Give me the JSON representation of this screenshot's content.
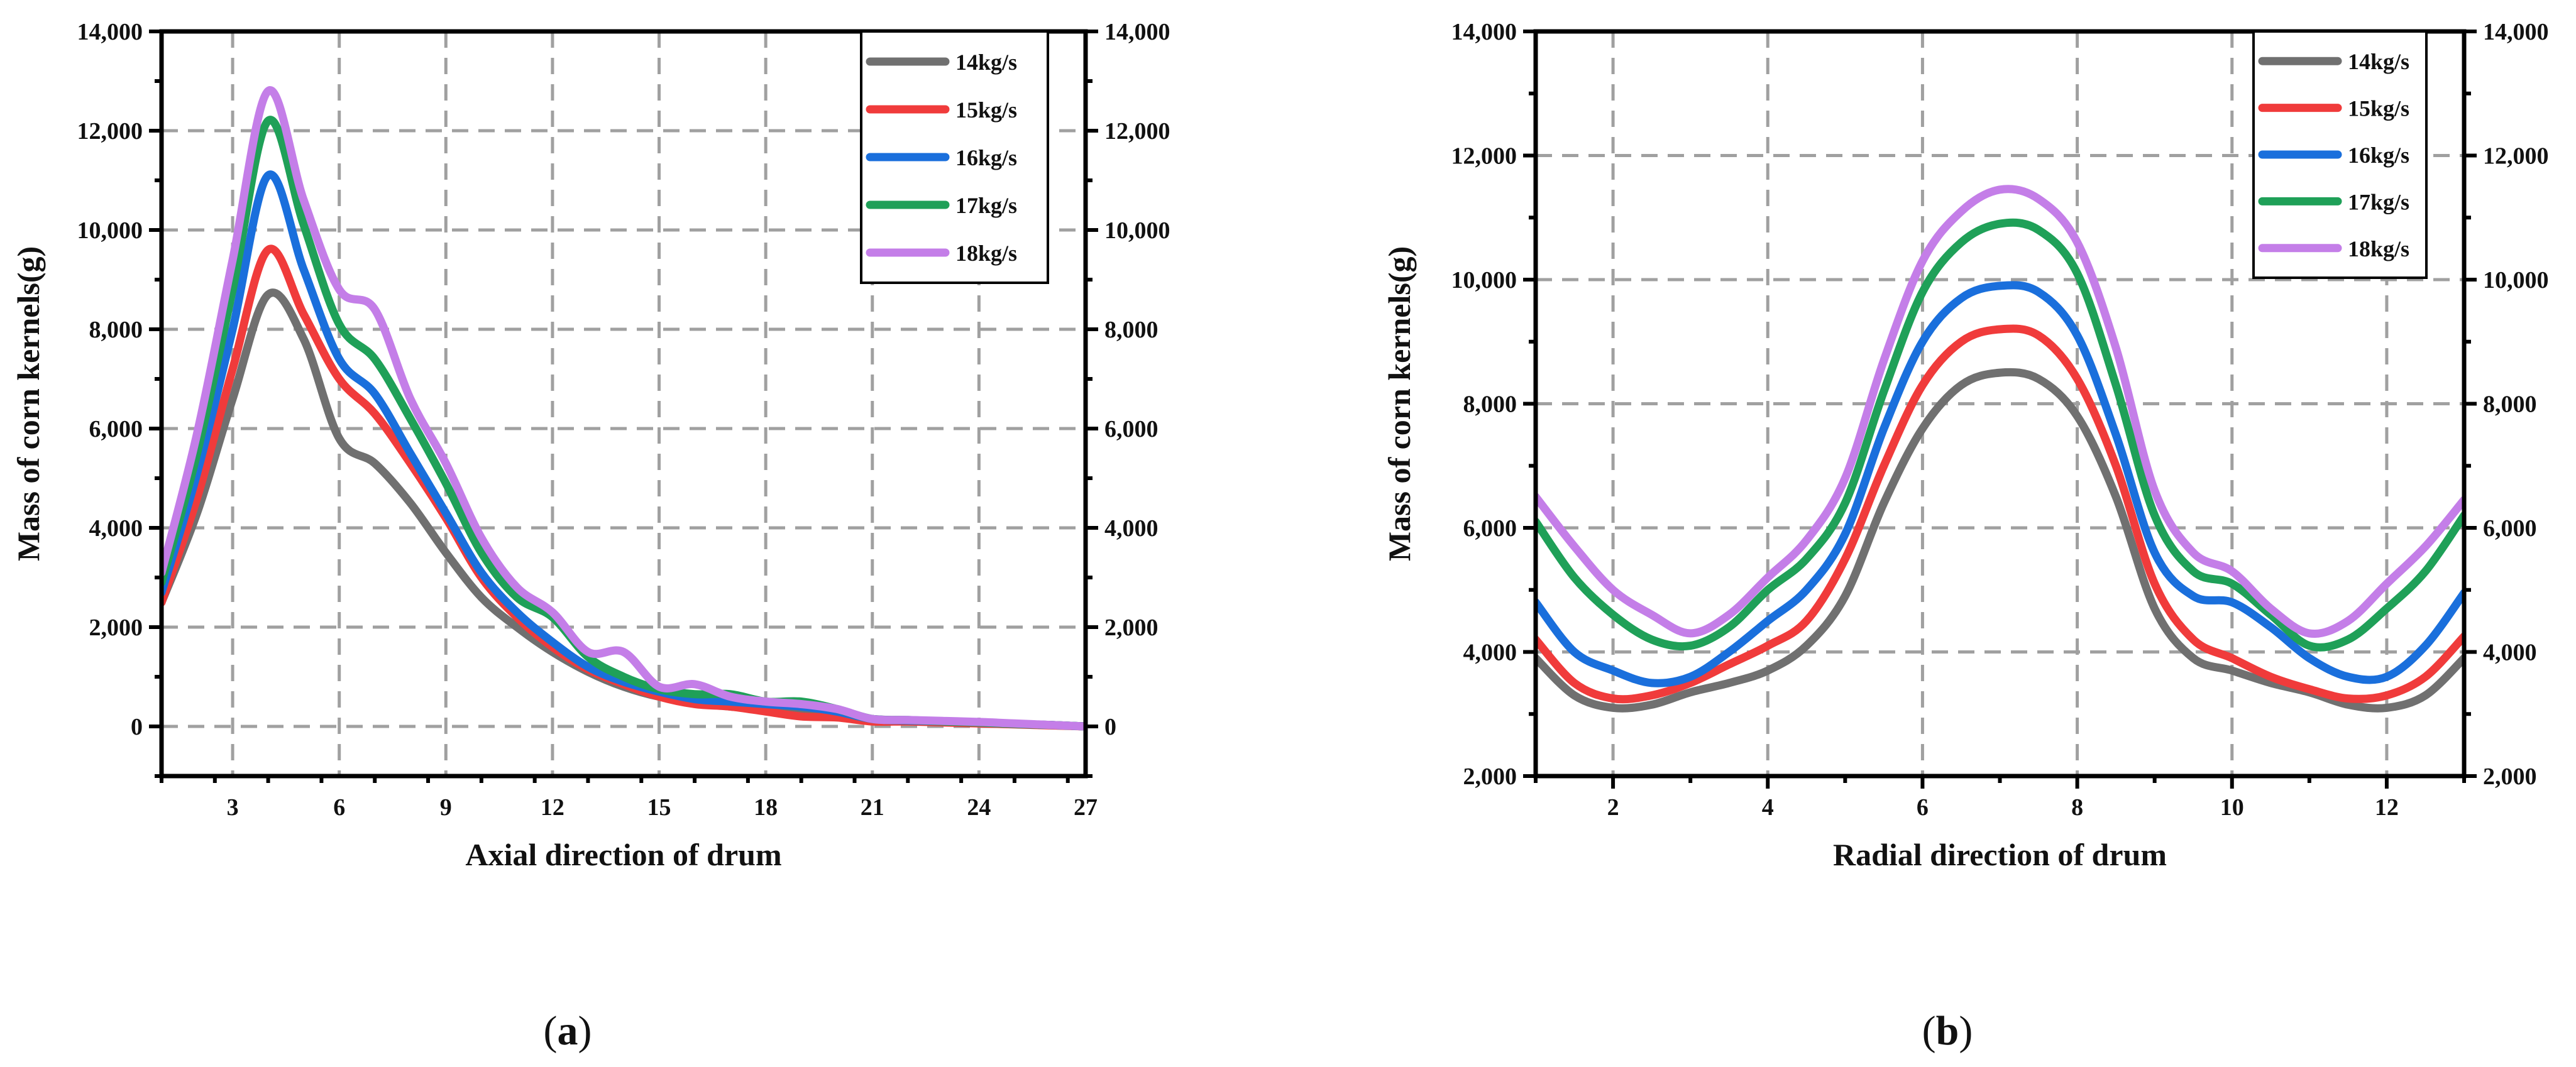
{
  "chart_data": [
    {
      "type": "line",
      "panel_label": "a",
      "xlabel": "Axial direction of drum",
      "ylabel": "Mass of corn kernels(g)",
      "xlim": [
        1,
        27
      ],
      "ylim": [
        -1000,
        14000
      ],
      "x_ticks": [
        3,
        6,
        9,
        12,
        15,
        18,
        21,
        24,
        27
      ],
      "x_tick_labels": [
        "3",
        "6",
        "9",
        "12",
        "15",
        "18",
        "21",
        "24",
        "27"
      ],
      "y_ticks": [
        0,
        2000,
        4000,
        6000,
        8000,
        10000,
        12000,
        14000
      ],
      "y_tick_labels": [
        "0",
        "2,000",
        "4,000",
        "6,000",
        "8,000",
        "10,000",
        "12,000",
        "14,000"
      ],
      "right_axis_tick_labels": [
        "0",
        "2,000",
        "4,000",
        "6,000",
        "8,000",
        "10,000",
        "12,000",
        "14,000"
      ],
      "grid": true,
      "legend_position": "top-right",
      "x": [
        1,
        2,
        3,
        4,
        5,
        6,
        7,
        8,
        9,
        10,
        11,
        12,
        13,
        14,
        15,
        16,
        17,
        18,
        19,
        20,
        21,
        22,
        23,
        24,
        25,
        26,
        27
      ],
      "series": [
        {
          "name": "14kg/s",
          "color": "#707070",
          "values": [
            2500,
            4300,
            6600,
            8700,
            7800,
            5800,
            5300,
            4500,
            3500,
            2600,
            2000,
            1500,
            1100,
            800,
            600,
            500,
            400,
            350,
            300,
            250,
            150,
            120,
            100,
            80,
            50,
            30,
            0
          ]
        },
        {
          "name": "15kg/s",
          "color": "#f03b3b",
          "values": [
            2500,
            4600,
            7200,
            9600,
            8300,
            7000,
            6300,
            5300,
            4200,
            3000,
            2200,
            1600,
            1150,
            850,
            600,
            450,
            400,
            300,
            200,
            180,
            100,
            100,
            80,
            60,
            40,
            20,
            0
          ]
        },
        {
          "name": "16kg/s",
          "color": "#1a6fdc",
          "values": [
            2700,
            5100,
            8000,
            11100,
            9200,
            7400,
            6700,
            5500,
            4300,
            3100,
            2300,
            1700,
            1200,
            900,
            700,
            550,
            500,
            450,
            400,
            300,
            150,
            120,
            100,
            80,
            50,
            30,
            0
          ]
        },
        {
          "name": "17kg/s",
          "color": "#1fa058",
          "values": [
            2900,
            5500,
            8800,
            12200,
            10100,
            8100,
            7400,
            6200,
            4900,
            3500,
            2600,
            2200,
            1400,
            1000,
            750,
            650,
            650,
            500,
            500,
            350,
            150,
            130,
            100,
            80,
            50,
            30,
            0
          ]
        },
        {
          "name": "18kg/s",
          "color": "#c47ee8",
          "values": [
            3100,
            5900,
            9400,
            12800,
            10600,
            8800,
            8400,
            6600,
            5300,
            3800,
            2800,
            2300,
            1500,
            1500,
            800,
            850,
            600,
            500,
            450,
            350,
            150,
            130,
            110,
            90,
            60,
            30,
            0
          ]
        }
      ]
    },
    {
      "type": "line",
      "panel_label": "b",
      "xlabel": "Radial direction of drum",
      "ylabel": "Mass of corn kernels(g)",
      "xlim": [
        1,
        13
      ],
      "ylim": [
        2000,
        14000
      ],
      "x_ticks": [
        2,
        4,
        6,
        8,
        10,
        12
      ],
      "x_tick_labels": [
        "2",
        "4",
        "6",
        "8",
        "10",
        "12"
      ],
      "y_ticks": [
        2000,
        4000,
        6000,
        8000,
        10000,
        12000,
        14000
      ],
      "y_tick_labels": [
        "2,000",
        "4,000",
        "6,000",
        "8,000",
        "10,000",
        "12,000",
        "14,000"
      ],
      "right_axis_tick_labels": [
        "2,000",
        "4,000",
        "6,000",
        "8,000",
        "10,000",
        "12,000",
        "14,000"
      ],
      "grid": true,
      "legend_position": "top-right",
      "x": [
        1,
        1.5,
        2,
        2.5,
        3,
        3.5,
        4,
        4.5,
        5,
        5.5,
        6,
        6.5,
        7,
        7.5,
        8,
        8.5,
        9,
        9.5,
        10,
        10.5,
        11,
        11.5,
        12,
        12.5,
        13
      ],
      "series": [
        {
          "name": "14kg/s",
          "color": "#707070",
          "values": [
            3900,
            3300,
            3100,
            3150,
            3350,
            3500,
            3700,
            4100,
            4900,
            6400,
            7600,
            8300,
            8500,
            8400,
            7800,
            6500,
            4700,
            3900,
            3700,
            3500,
            3350,
            3150,
            3100,
            3300,
            3900
          ]
        },
        {
          "name": "15kg/s",
          "color": "#f03b3b",
          "values": [
            4200,
            3500,
            3250,
            3300,
            3500,
            3800,
            4100,
            4500,
            5500,
            7000,
            8300,
            9000,
            9200,
            9100,
            8400,
            7000,
            5100,
            4200,
            3900,
            3600,
            3400,
            3250,
            3300,
            3600,
            4250
          ]
        },
        {
          "name": "16kg/s",
          "color": "#1a6fdc",
          "values": [
            4800,
            4000,
            3700,
            3500,
            3600,
            4000,
            4500,
            5000,
            5900,
            7600,
            9000,
            9700,
            9900,
            9800,
            9100,
            7500,
            5600,
            4900,
            4800,
            4400,
            3900,
            3600,
            3600,
            4100,
            4950
          ]
        },
        {
          "name": "17kg/s",
          "color": "#1fa058",
          "values": [
            6100,
            5200,
            4600,
            4200,
            4100,
            4400,
            5000,
            5500,
            6400,
            8200,
            9800,
            10600,
            10900,
            10800,
            10100,
            8300,
            6200,
            5300,
            5100,
            4600,
            4100,
            4200,
            4700,
            5300,
            6200
          ]
        },
        {
          "name": "18kg/s",
          "color": "#c47ee8",
          "values": [
            6500,
            5700,
            5000,
            4600,
            4300,
            4600,
            5200,
            5800,
            6800,
            8700,
            10300,
            11100,
            11450,
            11300,
            10600,
            8900,
            6600,
            5600,
            5300,
            4700,
            4300,
            4500,
            5100,
            5700,
            6450
          ]
        }
      ]
    }
  ]
}
